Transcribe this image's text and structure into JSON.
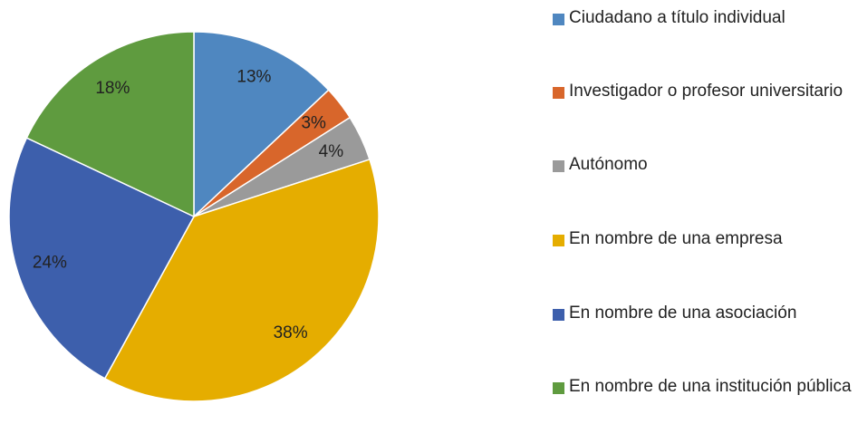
{
  "chart_data": {
    "type": "pie",
    "categories": [
      "Ciudadano a título individual",
      "Investigador o profesor universitario",
      "Autónomo",
      "En nombre de una empresa",
      "En nombre de una asociación",
      "En nombre de una institución pública"
    ],
    "values": [
      13,
      3,
      4,
      38,
      24,
      18
    ],
    "value_labels": [
      "13%",
      "3%",
      "4%",
      "38%",
      "24%",
      "18%"
    ],
    "colors": [
      "#4f87c0",
      "#d8662b",
      "#9a9a9a",
      "#e5ad00",
      "#3d5fac",
      "#5f9b3f"
    ],
    "legend": "right"
  }
}
